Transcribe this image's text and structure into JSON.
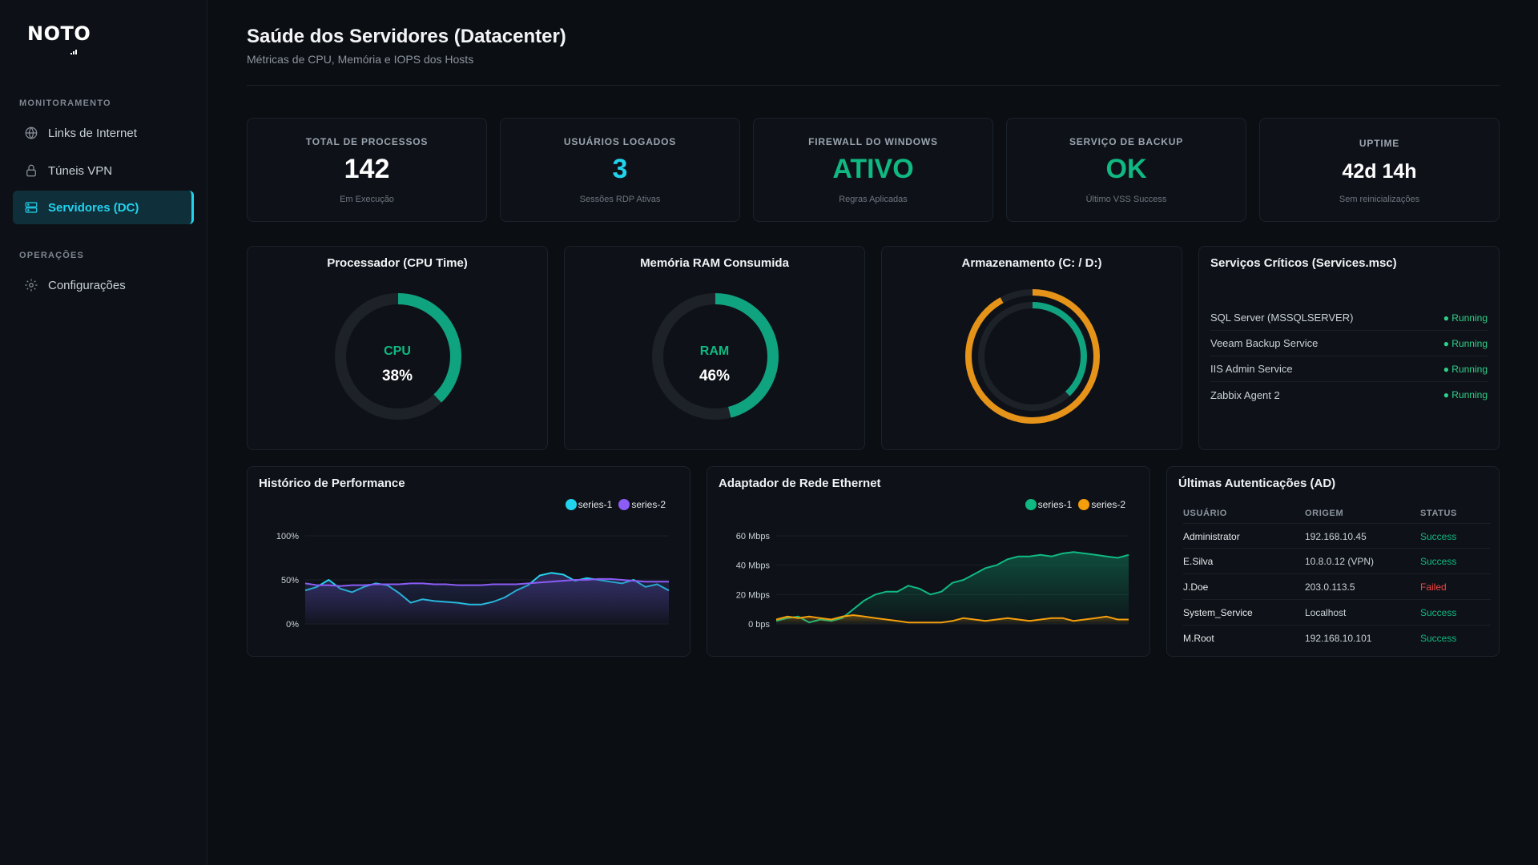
{
  "brand": {
    "logo_text": "NOTO"
  },
  "sidebar": {
    "sections": [
      {
        "title": "MONITORAMENTO"
      },
      {
        "title": "OPERAÇÕES"
      }
    ],
    "items": [
      {
        "label": "Links de Internet",
        "icon": "globe-icon"
      },
      {
        "label": "Túneis VPN",
        "icon": "lock-icon"
      },
      {
        "label": "Servidores (DC)",
        "icon": "server-icon",
        "active": true
      },
      {
        "label": "Configurações",
        "icon": "gear-icon"
      }
    ]
  },
  "header": {
    "title": "Saúde dos Servidores (Datacenter)",
    "subtitle": "Métricas de CPU, Memória e IOPS dos Hosts"
  },
  "kpis": [
    {
      "label": "TOTAL DE PROCESSOS",
      "value": "142",
      "note": "Em Execução",
      "color": "#ffffff"
    },
    {
      "label": "USUÁRIOS LOGADOS",
      "value": "3",
      "note": "Sessões RDP Ativas",
      "color": "#22d3ee"
    },
    {
      "label": "FIREWALL DO WINDOWS",
      "value": "ATIVO",
      "note": "Regras Aplicadas",
      "color": "#10b981"
    },
    {
      "label": "SERVIÇO DE BACKUP",
      "value": "OK",
      "note": "Último VSS Success",
      "color": "#10b981"
    },
    {
      "label": "UPTIME",
      "value": "42d 14h",
      "note": "Sem reinicializações",
      "color": "#ffffff"
    }
  ],
  "gauges": {
    "cpu": {
      "title": "Processador (CPU Time)",
      "name": "CPU",
      "value_label": "38%",
      "value": 0.38,
      "color": "#10a37f"
    },
    "ram": {
      "title": "Memória RAM Consumida",
      "name": "RAM",
      "value_label": "46%",
      "value": 0.46,
      "color": "#10a37f"
    },
    "storage": {
      "title": "Armazenamento (C: / D:)",
      "outer_value": 0.92,
      "inner_value": 0.38,
      "outer_color": "#e6931a",
      "inner_color": "#10a37f"
    }
  },
  "services": {
    "title": "Serviços Críticos (Services.msc)",
    "items": [
      {
        "name": "SQL Server (MSSQLSERVER)",
        "status": "● Running"
      },
      {
        "name": "Veeam Backup Service",
        "status": "● Running"
      },
      {
        "name": "IIS Admin Service",
        "status": "● Running"
      },
      {
        "name": "Zabbix Agent 2",
        "status": "● Running"
      }
    ]
  },
  "performance": {
    "title": "Histórico de Performance",
    "legend": [
      {
        "name": "series-1",
        "color": "#22d3ee"
      },
      {
        "name": "series-2",
        "color": "#8b5cf6"
      }
    ]
  },
  "network": {
    "title": "Adaptador de Rede Ethernet",
    "legend": [
      {
        "name": "series-1",
        "color": "#10b981"
      },
      {
        "name": "series-2",
        "color": "#f59e0b"
      }
    ]
  },
  "auth": {
    "title": "Últimas Autenticações (AD)",
    "columns": [
      "USUÁRIO",
      "ORIGEM",
      "STATUS"
    ],
    "rows": [
      {
        "user": "Administrator",
        "origin": "192.168.10.45",
        "status": "Success",
        "color": "#10b981"
      },
      {
        "user": "E.Silva",
        "origin": "10.8.0.12 (VPN)",
        "status": "Success",
        "color": "#10b981"
      },
      {
        "user": "J.Doe",
        "origin": "203.0.113.5",
        "status": "Failed",
        "color": "#ef4444"
      },
      {
        "user": "System_Service",
        "origin": "Localhost",
        "status": "Success",
        "color": "#10b981"
      },
      {
        "user": "M.Root",
        "origin": "192.168.10.101",
        "status": "Success",
        "color": "#10b981"
      }
    ]
  },
  "chart_data": [
    {
      "type": "area",
      "title": "Histórico de Performance",
      "yticks": [
        "100%",
        "50%",
        "0%"
      ],
      "ylim": [
        0,
        100
      ],
      "series": [
        {
          "name": "series-1",
          "values": [
            38,
            42,
            50,
            40,
            36,
            42,
            46,
            44,
            35,
            24,
            28,
            26,
            25,
            24,
            22,
            22,
            25,
            30,
            38,
            44,
            55,
            58,
            56,
            49,
            52,
            50,
            48,
            46,
            50,
            42,
            45,
            38
          ]
        },
        {
          "name": "series-2",
          "values": [
            46,
            44,
            44,
            43,
            44,
            44,
            45,
            45,
            45,
            46,
            46,
            45,
            45,
            44,
            44,
            44,
            45,
            45,
            45,
            46,
            47,
            48,
            49,
            50,
            50,
            51,
            51,
            50,
            49,
            48,
            48,
            48
          ]
        }
      ]
    },
    {
      "type": "area",
      "title": "Adaptador de Rede Ethernet",
      "yticks": [
        "60 Mbps",
        "40 Mbps",
        "20 Mbps",
        "0 bps"
      ],
      "ylim": [
        0,
        60
      ],
      "series": [
        {
          "name": "series-1",
          "values": [
            2,
            4,
            5,
            1,
            3,
            2,
            4,
            10,
            16,
            20,
            22,
            22,
            26,
            24,
            20,
            22,
            28,
            30,
            34,
            38,
            40,
            44,
            46,
            46,
            47,
            46,
            48,
            49,
            48,
            47,
            46,
            45,
            47
          ]
        },
        {
          "name": "series-2",
          "values": [
            3,
            5,
            4,
            5,
            4,
            3,
            5,
            6,
            5,
            4,
            3,
            2,
            1,
            1,
            1,
            1,
            2,
            4,
            3,
            2,
            3,
            4,
            3,
            2,
            3,
            4,
            4,
            2,
            3,
            4,
            5,
            3,
            3
          ]
        }
      ]
    }
  ]
}
